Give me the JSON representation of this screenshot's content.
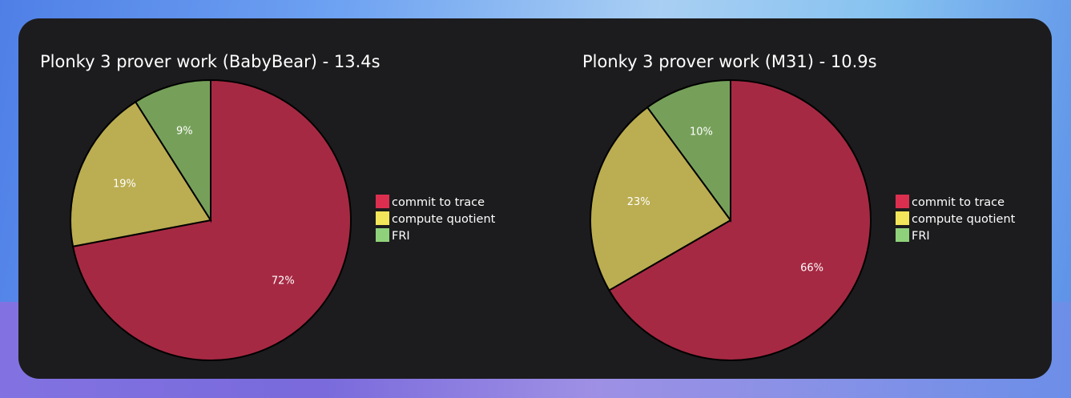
{
  "chart_data": [
    {
      "type": "pie",
      "title": "Plonky 3 prover work (BabyBear) - 13.4s",
      "categories": [
        "commit to trace",
        "compute quotient",
        "FRI"
      ],
      "values": [
        72,
        19,
        9
      ],
      "labels": [
        "72%",
        "19%",
        "9%"
      ],
      "slice_colors": [
        "#a62943",
        "#bbad51",
        "#76a05a"
      ],
      "legend": {
        "placement": "right",
        "entries": [
          "commit to trace",
          "compute quotient",
          "FRI"
        ],
        "colors": [
          "#dc2f4f",
          "#f3e65a",
          "#8fd17a"
        ]
      }
    },
    {
      "type": "pie",
      "title": "Plonky 3 prover work (M31) - 10.9s",
      "categories": [
        "commit to trace",
        "compute quotient",
        "FRI"
      ],
      "values": [
        66,
        23,
        10
      ],
      "labels": [
        "66%",
        "23%",
        "10%"
      ],
      "slice_colors": [
        "#a62943",
        "#bbad51",
        "#76a05a"
      ],
      "legend": {
        "placement": "right",
        "entries": [
          "commit to trace",
          "compute quotient",
          "FRI"
        ],
        "colors": [
          "#dc2f4f",
          "#f3e65a",
          "#8fd17a"
        ]
      }
    }
  ]
}
